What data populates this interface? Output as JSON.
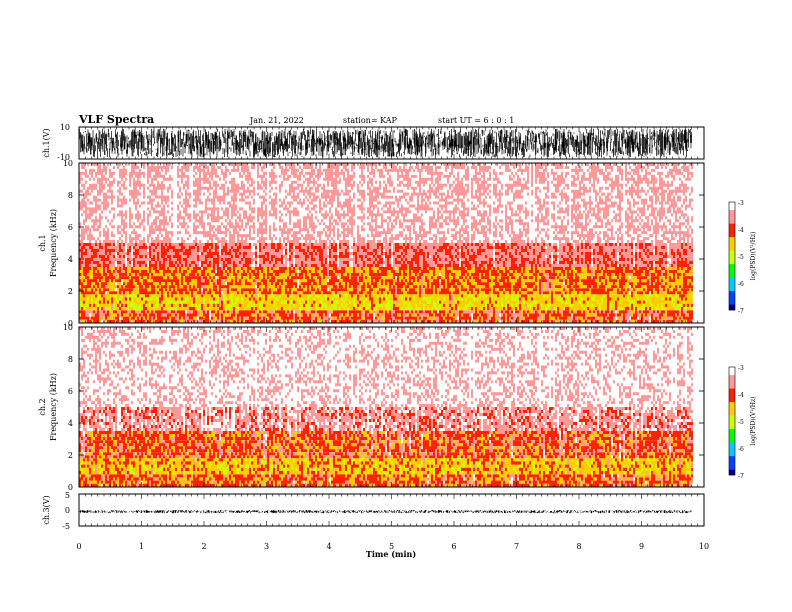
{
  "header": {
    "title": "VLF Spectra",
    "date": "Jan. 21, 2022",
    "station": "station= KAP",
    "start": "start UT =  6 : 0 : 1"
  },
  "colors": {
    "colormap": [
      "#000088",
      "#0044ff",
      "#00ccff",
      "#00ff00",
      "#ccff00",
      "#ffcc00",
      "#ff2200",
      "#ff9999",
      "#ffffff"
    ],
    "trace": "#000000"
  },
  "chart_data": [
    {
      "type": "line",
      "name": "ch1-waveform",
      "ylabel": "ch.1(V)",
      "ylim": [
        -10,
        10
      ],
      "yticks": [
        "10",
        "-10"
      ],
      "xlim": [
        0,
        10
      ],
      "amplitude_envelope": [
        -9,
        9
      ]
    },
    {
      "type": "heatmap",
      "name": "ch1-spectrogram",
      "ylabel_channel": "ch.1",
      "ylabel": "Frequency (kHz)",
      "ylim": [
        0,
        10
      ],
      "yticks": [
        0,
        2,
        4,
        6,
        8,
        10
      ],
      "xlim": [
        0,
        10
      ],
      "data_end_min": 9.8,
      "colorbar": {
        "label": "log(PSD)(V²/Hz)",
        "range": [
          -7,
          -3
        ],
        "ticks": [
          "-3",
          "-4",
          "-5",
          "-6",
          "-7"
        ]
      },
      "bands": [
        {
          "fmin": 0,
          "fmax": 0.8,
          "level": -4.0
        },
        {
          "fmin": 0.8,
          "fmax": 1.8,
          "level": -4.6
        },
        {
          "fmin": 1.8,
          "fmax": 3.5,
          "level": -4.2
        },
        {
          "fmin": 3.5,
          "fmax": 5.0,
          "level": -3.7
        },
        {
          "fmin": 5.0,
          "fmax": 10.0,
          "level": -3.3
        }
      ]
    },
    {
      "type": "heatmap",
      "name": "ch2-spectrogram",
      "ylabel_channel": "ch.2",
      "ylabel": "Frequency (kHz)",
      "ylim": [
        0,
        10
      ],
      "yticks": [
        0,
        2,
        4,
        6,
        8,
        10
      ],
      "xlim": [
        0,
        10
      ],
      "data_end_min": 9.8,
      "colorbar": {
        "label": "log(PSD)(V²/Hz)",
        "range": [
          -7,
          -3
        ],
        "ticks": [
          "-3",
          "-4",
          "-5",
          "-6",
          "-7"
        ]
      },
      "bands": [
        {
          "fmin": 0,
          "fmax": 0.8,
          "level": -4.1
        },
        {
          "fmin": 0.8,
          "fmax": 1.8,
          "level": -4.5
        },
        {
          "fmin": 1.8,
          "fmax": 3.5,
          "level": -4.0
        },
        {
          "fmin": 3.5,
          "fmax": 5.0,
          "level": -3.5
        },
        {
          "fmin": 5.0,
          "fmax": 10.0,
          "level": -3.15
        }
      ]
    },
    {
      "type": "line",
      "name": "ch3-waveform",
      "ylabel": "ch.3(V)",
      "ylim": [
        -5,
        5
      ],
      "yticks": [
        "5",
        "0",
        "-5"
      ],
      "xlim": [
        0,
        10
      ],
      "amplitude_envelope": [
        -1,
        0
      ]
    }
  ],
  "xaxis": {
    "label": "Time (min)",
    "ticks": [
      "0",
      "1",
      "2",
      "3",
      "4",
      "5",
      "6",
      "7",
      "8",
      "9",
      "10"
    ]
  }
}
